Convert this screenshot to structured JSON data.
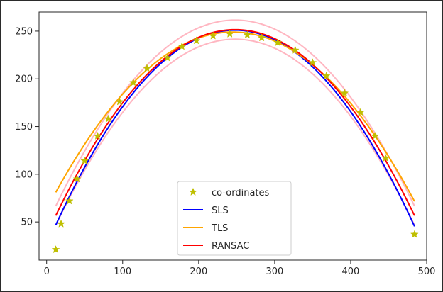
{
  "chart_data": {
    "type": "line",
    "title": "",
    "xlabel": "",
    "ylabel": "",
    "xlim": [
      -10,
      500
    ],
    "ylim": [
      10,
      270
    ],
    "xticks": [
      0,
      100,
      200,
      300,
      400,
      500
    ],
    "yticks": [
      50,
      100,
      150,
      200,
      250
    ],
    "grid": false,
    "legend_position": "lower-center",
    "points": {
      "name": "co-ordinates",
      "marker": "star",
      "color": "#bfbf00",
      "x": [
        12,
        19,
        30,
        40,
        50,
        67,
        81,
        96,
        114,
        132,
        159,
        178,
        197,
        219,
        241,
        264,
        283,
        304,
        327,
        350,
        368,
        392,
        413,
        432,
        446,
        484
      ],
      "y": [
        21,
        48,
        72,
        95,
        114,
        140,
        158,
        176,
        196,
        211,
        222,
        234,
        240,
        245,
        247,
        246,
        243,
        238,
        230,
        217,
        203,
        185,
        165,
        140,
        117,
        37
      ]
    },
    "series": [
      {
        "name": "SLS",
        "color": "#0000ff",
        "a": -0.00368,
        "b": 1.8224,
        "c": 25.4
      },
      {
        "name": "TLS",
        "color": "#ffa500",
        "a": -0.0031,
        "b": 1.5176,
        "c": 63.3
      },
      {
        "name": "RANSAC",
        "color": "#ff0000",
        "a": -0.0035,
        "b": 1.736,
        "c": 36.3
      }
    ],
    "bands": [
      {
        "color": "#ffb6c1",
        "a": -0.0035,
        "b": 1.736,
        "c": 46.3
      },
      {
        "color": "#ffb6c1",
        "a": -0.0035,
        "b": 1.736,
        "c": 26.3
      }
    ],
    "x_range": [
      12,
      484
    ]
  }
}
